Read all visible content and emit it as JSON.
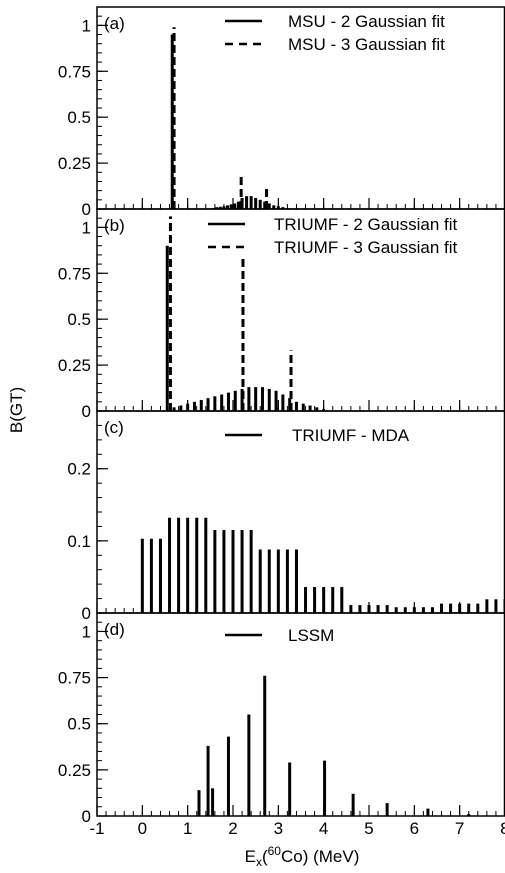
{
  "figure": {
    "ylabel": "B(GT)",
    "xlabel_parts": [
      "E",
      "x",
      "(",
      "60",
      "Co) (MeV)"
    ]
  },
  "chart_data": [
    {
      "type": "bar",
      "panel": "(a)",
      "xlim": [
        -1,
        8
      ],
      "ylim": [
        0,
        1.1
      ],
      "x_ticks": [
        "-1",
        "0",
        "1",
        "2",
        "3",
        "4",
        "5",
        "6",
        "7",
        "8"
      ],
      "y_ticks": [
        {
          "value": 0,
          "label": "0"
        },
        {
          "value": 0.25,
          "label": "0.25"
        },
        {
          "value": 0.5,
          "label": "0.5"
        },
        {
          "value": 0.75,
          "label": "0.75"
        },
        {
          "value": 1,
          "label": "1"
        }
      ],
      "series": [
        {
          "name": "MSU - 2 Gaussian fit",
          "style": "solid",
          "x": [
            0.66,
            1.56,
            1.64,
            1.72,
            1.8,
            1.88,
            1.96,
            2.04,
            2.12,
            2.2,
            2.3,
            2.4,
            2.5,
            2.6,
            2.7,
            2.8,
            2.9,
            3.0,
            3.1,
            3.2
          ],
          "values": [
            0.95,
            0.005,
            0.01,
            0.012,
            0.015,
            0.02,
            0.025,
            0.03,
            0.04,
            0.06,
            0.07,
            0.07,
            0.06,
            0.05,
            0.04,
            0.03,
            0.02,
            0.015,
            0.01,
            0.005
          ]
        },
        {
          "name": "MSU - 3 Gaussian fit",
          "style": "dashed",
          "x": [
            0.7,
            2.18,
            2.74
          ],
          "values": [
            0.99,
            0.18,
            0.12
          ]
        }
      ]
    },
    {
      "type": "bar",
      "panel": "(b)",
      "xlim": [
        -1,
        8
      ],
      "ylim": [
        0,
        1.1
      ],
      "x_ticks": [
        "-1",
        "0",
        "1",
        "2",
        "3",
        "4",
        "5",
        "6",
        "7",
        "8"
      ],
      "y_ticks": [
        {
          "value": 0,
          "label": "0"
        },
        {
          "value": 0.25,
          "label": "0.25"
        },
        {
          "value": 0.5,
          "label": "0.5"
        },
        {
          "value": 0.75,
          "label": "0.75"
        },
        {
          "value": 1,
          "label": "1"
        }
      ],
      "series": [
        {
          "name": "TRIUMF - 2 Gaussian fit",
          "style": "solid",
          "x": [
            0.55,
            0.7,
            0.85,
            1.0,
            1.15,
            1.3,
            1.45,
            1.6,
            1.75,
            1.9,
            2.05,
            2.2,
            2.35,
            2.5,
            2.65,
            2.8,
            2.95,
            3.1,
            3.25,
            3.4,
            3.55,
            3.7,
            3.85,
            4.0
          ],
          "values": [
            0.9,
            0.02,
            0.03,
            0.04,
            0.05,
            0.06,
            0.07,
            0.08,
            0.09,
            0.1,
            0.11,
            0.12,
            0.13,
            0.13,
            0.13,
            0.12,
            0.11,
            0.09,
            0.07,
            0.05,
            0.04,
            0.03,
            0.02,
            0.01
          ]
        },
        {
          "name": "TRIUMF - 3 Gaussian fit",
          "style": "dashed",
          "x": [
            0.62,
            2.22,
            3.28
          ],
          "values": [
            1.06,
            0.84,
            0.33
          ]
        }
      ]
    },
    {
      "type": "bar",
      "panel": "(c)",
      "xlim": [
        -1,
        8
      ],
      "ylim": [
        0,
        0.28
      ],
      "x_ticks": [
        "-1",
        "0",
        "1",
        "2",
        "3",
        "4",
        "5",
        "6",
        "7",
        "8"
      ],
      "y_ticks": [
        {
          "value": 0,
          "label": "0"
        },
        {
          "value": 0.1,
          "label": "0.1"
        },
        {
          "value": 0.2,
          "label": "0.2"
        }
      ],
      "series": [
        {
          "name": "TRIUMF - MDA",
          "style": "solid",
          "x": [
            0.0,
            0.2,
            0.4,
            0.6,
            0.8,
            1.0,
            1.2,
            1.4,
            1.6,
            1.8,
            2.0,
            2.2,
            2.4,
            2.6,
            2.8,
            3.0,
            3.2,
            3.4,
            3.6,
            3.8,
            4.0,
            4.2,
            4.4,
            4.6,
            4.8,
            5.0,
            5.2,
            5.4,
            5.6,
            5.8,
            6.0,
            6.2,
            6.4,
            6.6,
            6.8,
            7.0,
            7.2,
            7.4,
            7.6,
            7.8,
            8.0
          ],
          "values": [
            0.103,
            0.103,
            0.103,
            0.132,
            0.132,
            0.132,
            0.132,
            0.132,
            0.115,
            0.115,
            0.115,
            0.115,
            0.115,
            0.088,
            0.088,
            0.088,
            0.088,
            0.088,
            0.036,
            0.036,
            0.036,
            0.036,
            0.036,
            0.011,
            0.011,
            0.011,
            0.011,
            0.011,
            0.008,
            0.008,
            0.008,
            0.008,
            0.008,
            0.013,
            0.013,
            0.013,
            0.013,
            0.013,
            0.019,
            0.019,
            0.019
          ]
        }
      ]
    },
    {
      "type": "bar",
      "panel": "(d)",
      "xlim": [
        -1,
        8
      ],
      "ylim": [
        0,
        1.1
      ],
      "x_ticks": [
        "-1",
        "0",
        "1",
        "2",
        "3",
        "4",
        "5",
        "6",
        "7",
        "8"
      ],
      "y_ticks": [
        {
          "value": 0,
          "label": "0"
        },
        {
          "value": 0.25,
          "label": "0.25"
        },
        {
          "value": 0.5,
          "label": "0.5"
        },
        {
          "value": 0.75,
          "label": "0.75"
        },
        {
          "value": 1,
          "label": "1"
        }
      ],
      "series": [
        {
          "name": "LSSM",
          "style": "solid",
          "x": [
            1.25,
            1.45,
            1.55,
            1.9,
            2.35,
            2.7,
            3.25,
            4.02,
            4.65,
            5.4,
            6.3,
            7.2
          ],
          "values": [
            0.14,
            0.38,
            0.15,
            0.43,
            0.55,
            0.76,
            0.29,
            0.3,
            0.12,
            0.07,
            0.04,
            0.01
          ]
        }
      ]
    }
  ]
}
